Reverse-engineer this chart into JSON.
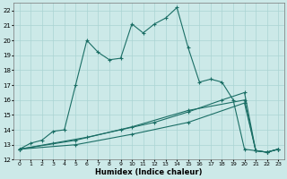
{
  "xlabel": "Humidex (Indice chaleur)",
  "bg_color": "#cce9e8",
  "grid_color": "#aad4d3",
  "line_color": "#1a6e65",
  "xlim": [
    -0.5,
    23.5
  ],
  "ylim": [
    12.0,
    22.5
  ],
  "xticks": [
    0,
    1,
    2,
    3,
    4,
    5,
    6,
    7,
    8,
    9,
    10,
    11,
    12,
    13,
    14,
    15,
    16,
    17,
    18,
    19,
    20,
    21,
    22,
    23
  ],
  "yticks": [
    12,
    13,
    14,
    15,
    16,
    17,
    18,
    19,
    20,
    21,
    22
  ],
  "line1_x": [
    0,
    1,
    2,
    3,
    4,
    5,
    6,
    7,
    8,
    9,
    10,
    11,
    12,
    13,
    14,
    15,
    16,
    17,
    18,
    19,
    20,
    21,
    22,
    23
  ],
  "line1_y": [
    12.7,
    13.1,
    13.3,
    13.9,
    14.0,
    17.0,
    20.0,
    19.2,
    18.7,
    18.8,
    21.1,
    20.5,
    21.1,
    21.5,
    22.2,
    19.5,
    17.2,
    17.4,
    17.2,
    16.0,
    12.7,
    12.6,
    12.5,
    12.7
  ],
  "line2_x": [
    0,
    3,
    6,
    9,
    12,
    15,
    18,
    20,
    21,
    22,
    23
  ],
  "line2_y": [
    12.7,
    13.1,
    13.5,
    14.0,
    14.5,
    15.2,
    16.0,
    16.5,
    12.6,
    12.5,
    12.7
  ],
  "line3_x": [
    0,
    5,
    10,
    15,
    20,
    21,
    22,
    23
  ],
  "line3_y": [
    12.7,
    13.3,
    14.2,
    15.3,
    16.0,
    12.6,
    12.5,
    12.7
  ],
  "line4_x": [
    0,
    5,
    10,
    15,
    20,
    21,
    22,
    23
  ],
  "line4_y": [
    12.7,
    13.0,
    13.7,
    14.5,
    15.8,
    12.6,
    12.5,
    12.7
  ]
}
